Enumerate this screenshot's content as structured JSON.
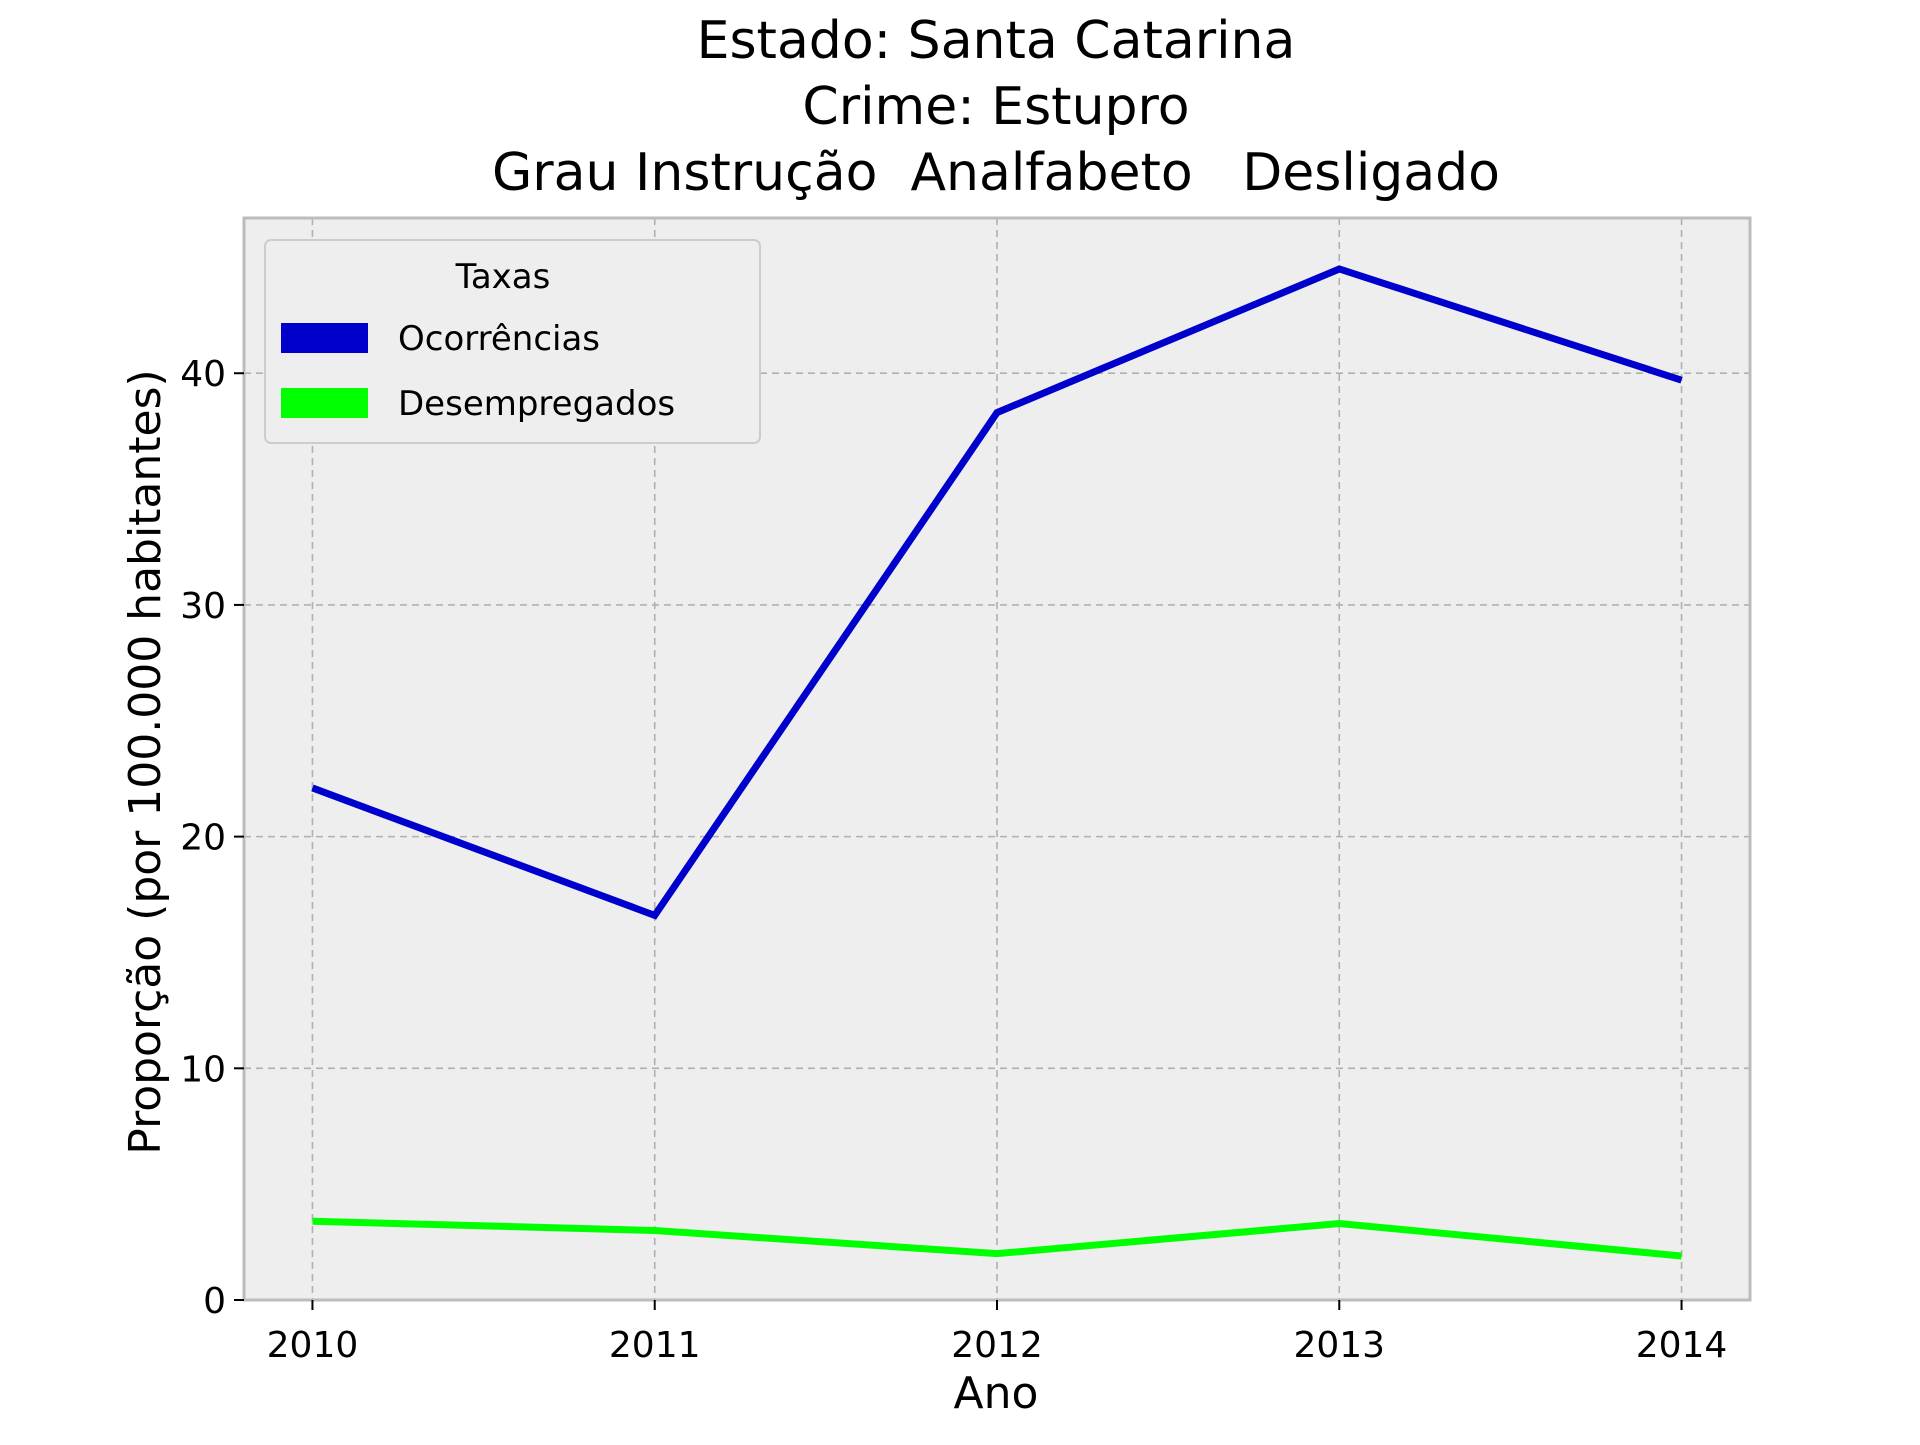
{
  "chart_data": {
    "type": "line",
    "title_lines": [
      "Estado: Santa Catarina",
      "Crime: Estupro",
      "Grau Instrução  Analfabeto   Desligado"
    ],
    "xlabel": "Ano",
    "ylabel": "Proporção (por 100.000 habitantes)",
    "x": [
      2010,
      2011,
      2012,
      2013,
      2014
    ],
    "x_tick_labels": [
      "2010",
      "2011",
      "2012",
      "2013",
      "2014"
    ],
    "xlim": [
      2009.8,
      2014.2
    ],
    "y_ticks": [
      0,
      10,
      20,
      30,
      40
    ],
    "y_tick_labels": [
      "0",
      "10",
      "20",
      "30",
      "40"
    ],
    "ylim": [
      0,
      46.7
    ],
    "grid": true,
    "legend": {
      "title": "Taxas",
      "placement": "top-left"
    },
    "series": [
      {
        "name": "Ocorrências",
        "color": "#0000cc",
        "values": [
          22.1,
          16.6,
          38.3,
          44.5,
          39.7
        ]
      },
      {
        "name": "Desempregados",
        "color": "#00ff00",
        "values": [
          3.4,
          3.0,
          2.0,
          3.3,
          1.9
        ]
      }
    ],
    "colors": {
      "plot_background": "#eeeeee",
      "grid": "#b0b0b0",
      "frame": "#bcbcbc"
    }
  }
}
